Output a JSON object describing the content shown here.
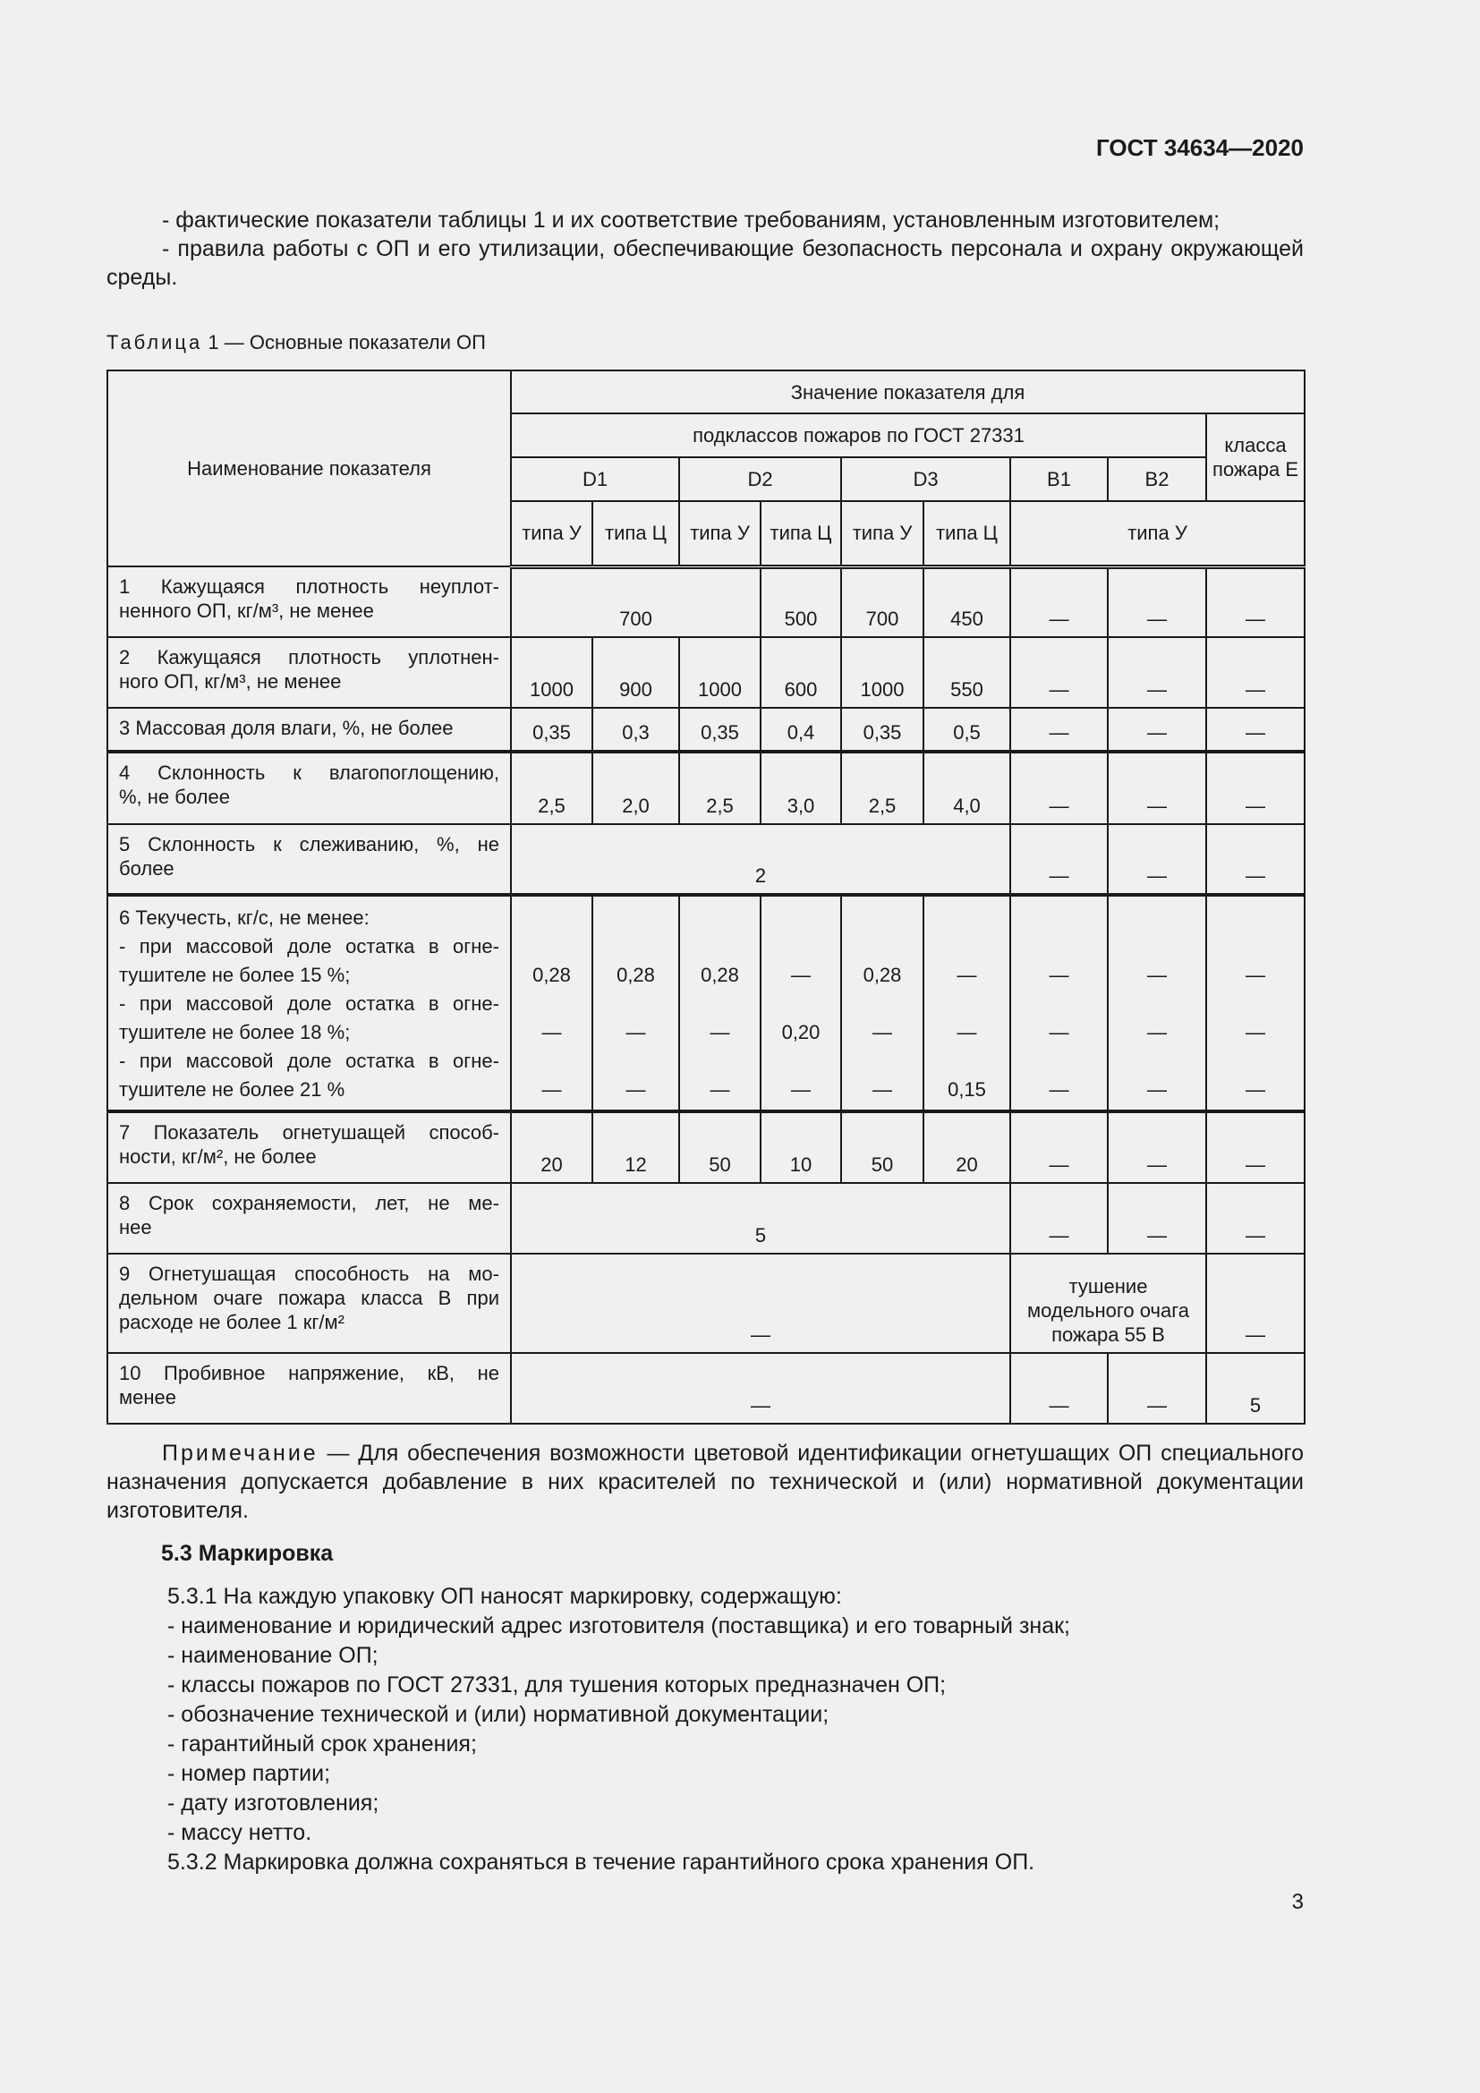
{
  "header": {
    "doc_code": "ГОСТ 34634—2020"
  },
  "intro": [
    "- фактические показатели таблицы 1 и их соответствие требованиям, установленным изготовителем;",
    "- правила работы с ОП и его утилизации, обеспечивающие безопасность персонала и охрану окружающей среды."
  ],
  "table": {
    "caption_label": "Таблица",
    "caption_text": " 1 — Основные показатели ОП",
    "head": {
      "name": "Наименование показателя",
      "value_for": "Значение показателя для",
      "subclasses": "подклассов пожаров по ГОСТ 27331",
      "class_e": "класса пожара Е",
      "groups": [
        "D1",
        "D2",
        "D3",
        "B1",
        "B2"
      ],
      "types": [
        "типа У",
        "типа Ц",
        "типа У",
        "типа Ц",
        "типа У",
        "типа Ц"
      ],
      "type_u": "типа У"
    },
    "rows": [
      {
        "name": [
          "1 Кажущаяся плотность неуплот-",
          "ненного ОП, кг/м³, не менее"
        ],
        "cells": [
          {
            "t": "700",
            "cs": 3
          },
          {
            "t": "500"
          },
          {
            "t": "700"
          },
          {
            "t": "450"
          },
          {
            "t": "—"
          },
          {
            "t": "—"
          },
          {
            "t": "—"
          }
        ]
      },
      {
        "name": [
          "2 Кажущаяся плотность уплотнен-",
          "ного ОП, кг/м³, не менее"
        ],
        "cells": [
          {
            "t": "1000"
          },
          {
            "t": "900"
          },
          {
            "t": "1000"
          },
          {
            "t": "600"
          },
          {
            "t": "1000"
          },
          {
            "t": "550"
          },
          {
            "t": "—"
          },
          {
            "t": "—"
          },
          {
            "t": "—"
          }
        ]
      },
      {
        "name": [
          "3 Массовая доля влаги, %, не более"
        ],
        "cells": [
          {
            "t": "0,35"
          },
          {
            "t": "0,3"
          },
          {
            "t": "0,35"
          },
          {
            "t": "0,4"
          },
          {
            "t": "0,35"
          },
          {
            "t": "0,5"
          },
          {
            "t": "—"
          },
          {
            "t": "—"
          },
          {
            "t": "—"
          }
        ]
      },
      {
        "name": [
          "4 Склонность к влагопоглощению,",
          "%, не более"
        ],
        "thick": true,
        "cells": [
          {
            "t": "2,5"
          },
          {
            "t": "2,0"
          },
          {
            "t": "2,5"
          },
          {
            "t": "3,0"
          },
          {
            "t": "2,5"
          },
          {
            "t": "4,0"
          },
          {
            "t": "—"
          },
          {
            "t": "—"
          },
          {
            "t": "—"
          }
        ]
      },
      {
        "name": [
          "5 Склонность к слеживанию, %, не",
          "более"
        ],
        "cells": [
          {
            "t": "2",
            "cs": 6
          },
          {
            "t": "—"
          },
          {
            "t": "—"
          },
          {
            "t": "—"
          }
        ]
      },
      {
        "name": [
          "6 Текучесть, кг/с, не менее:",
          "- при массовой доле остатка в огне-",
          "тушителе не более 15 %;",
          "- при массовой доле остатка в огне-",
          "тушителе не более 18 %;",
          "- при массовой доле остатка в огне-",
          "тушителе не более 21 %"
        ],
        "thick": true,
        "multi": true,
        "cells": [
          {
            "m": [
              "0,28",
              "—",
              "—"
            ]
          },
          {
            "m": [
              "0,28",
              "—",
              "—"
            ]
          },
          {
            "m": [
              "0,28",
              "—",
              "—"
            ]
          },
          {
            "m": [
              "—",
              "0,20",
              "—"
            ]
          },
          {
            "m": [
              "0,28",
              "—",
              "—"
            ]
          },
          {
            "m": [
              "—",
              "—",
              "0,15"
            ]
          },
          {
            "m": [
              "—",
              "—",
              "—"
            ]
          },
          {
            "m": [
              "—",
              "—",
              "—"
            ]
          },
          {
            "m": [
              "—",
              "—",
              "—"
            ]
          }
        ]
      },
      {
        "name": [
          "7 Показатель огнетушащей способ-",
          "ности, кг/м², не более"
        ],
        "thick": true,
        "cells": [
          {
            "t": "20"
          },
          {
            "t": "12"
          },
          {
            "t": "50"
          },
          {
            "t": "10"
          },
          {
            "t": "50"
          },
          {
            "t": "20"
          },
          {
            "t": "—"
          },
          {
            "t": "—"
          },
          {
            "t": "—"
          }
        ]
      },
      {
        "name": [
          "8 Срок сохраняемости, лет, не ме-",
          "нее"
        ],
        "cells": [
          {
            "t": "5",
            "cs": 6
          },
          {
            "t": "—"
          },
          {
            "t": "—"
          },
          {
            "t": "—"
          }
        ]
      },
      {
        "name": [
          "9 Огнетушащая способность на мо-",
          "дельном очаге пожара класса В при",
          "расходе не более 1 кг/м²"
        ],
        "cells": [
          {
            "t": "—",
            "cs": 6
          },
          {
            "t": "тушение модельного очага пожара 55 В",
            "cs": 2
          },
          {
            "t": "—"
          }
        ]
      },
      {
        "name": [
          "10 Пробивное напряжение, кВ, не",
          "менее"
        ],
        "cells": [
          {
            "t": "—",
            "cs": 6
          },
          {
            "t": "—"
          },
          {
            "t": "—"
          },
          {
            "t": "5"
          }
        ]
      }
    ]
  },
  "note": {
    "label": "Примечание",
    "text": " — Для обеспечения возможности цветовой идентификации огнетушащих ОП специального назначения допускается добавление в них красителей по технической и (или) нормативной документации изготовителя."
  },
  "section": {
    "heading": "5.3 Маркировка",
    "items": [
      "5.3.1 На каждую упаковку ОП наносят маркировку, содержащую:",
      "- наименование и юридический адрес изготовителя (поставщика) и его товарный знак;",
      "- наименование ОП;",
      "- классы пожаров по ГОСТ 27331, для тушения которых предназначен ОП;",
      "- обозначение технической и (или) нормативной документации;",
      "- гарантийный срок хранения;",
      "- номер партии;",
      "- дату изготовления;",
      "- массу нетто.",
      "5.3.2 Маркировка должна сохраняться в течение гарантийного срока хранения ОП."
    ]
  },
  "page_number": "3"
}
